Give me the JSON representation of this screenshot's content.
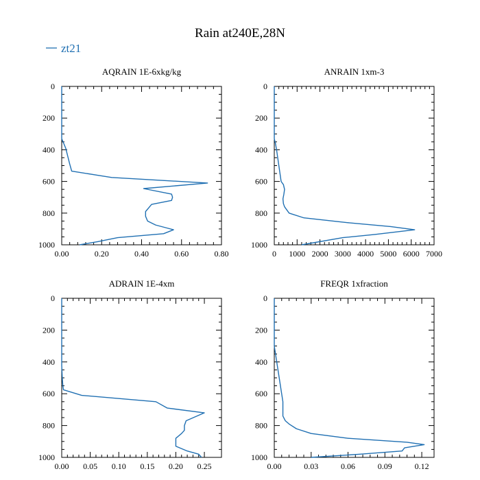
{
  "figure": {
    "title": "Rain at240E,28N",
    "legend": {
      "label": "zt21",
      "color": "#1f6fb2",
      "placement": "top-left"
    }
  },
  "chart_data": [
    {
      "type": "line",
      "title": "AQRAIN  1E-6xkg/kg",
      "xlabel": "",
      "ylabel": "",
      "xlim": [
        0,
        0.8
      ],
      "ylim": [
        1000,
        0
      ],
      "xticks": [
        0,
        0.2,
        0.4,
        0.6,
        0.8
      ],
      "xtick_labels": [
        "0.00",
        "0.20",
        "0.40",
        "0.60",
        "0.80"
      ],
      "yticks": [
        0,
        200,
        400,
        600,
        800,
        1000
      ],
      "ytick_labels": [
        "0",
        "200",
        "400",
        "600",
        "800",
        "1000"
      ],
      "series": [
        {
          "name": "zt21",
          "x": [
            0.0,
            0.0,
            0.01,
            0.02,
            0.03,
            0.04,
            0.05,
            0.25,
            0.73,
            0.41,
            0.55,
            0.555,
            0.55,
            0.45,
            0.44,
            0.42,
            0.42,
            0.43,
            0.47,
            0.53,
            0.56,
            0.51,
            0.28,
            0.18,
            0.09
          ],
          "y": [
            0,
            330,
            360,
            390,
            440,
            490,
            535,
            575,
            610,
            645,
            680,
            700,
            720,
            745,
            760,
            790,
            820,
            850,
            875,
            895,
            905,
            930,
            955,
            980,
            1000
          ]
        }
      ]
    },
    {
      "type": "line",
      "title": "ANRAIN  1xm-3",
      "xlabel": "",
      "ylabel": "",
      "xlim": [
        0,
        7000
      ],
      "ylim": [
        1000,
        0
      ],
      "xticks": [
        0,
        1000,
        2000,
        3000,
        4000,
        5000,
        6000,
        7000
      ],
      "xtick_labels": [
        "0",
        "1000",
        "2000",
        "3000",
        "4000",
        "5000",
        "6000",
        "7000"
      ],
      "yticks": [
        0,
        200,
        400,
        600,
        800,
        1000
      ],
      "ytick_labels": [
        "0",
        "200",
        "400",
        "600",
        "800",
        "1000"
      ],
      "series": [
        {
          "name": "zt21",
          "x": [
            0,
            0,
            50,
            100,
            150,
            200,
            250,
            300,
            400,
            450,
            420,
            380,
            400,
            450,
            650,
            1300,
            3200,
            5100,
            6150,
            4400,
            3000,
            1200
          ],
          "y": [
            0,
            330,
            360,
            400,
            450,
            500,
            550,
            600,
            620,
            650,
            680,
            710,
            740,
            760,
            800,
            830,
            860,
            885,
            905,
            935,
            955,
            1000
          ]
        }
      ]
    },
    {
      "type": "line",
      "title": "ADRAIN  1E-4xm",
      "xlabel": "",
      "ylabel": "",
      "xlim": [
        0,
        0.28
      ],
      "ylim": [
        1000,
        0
      ],
      "xticks": [
        0,
        0.05,
        0.1,
        0.15,
        0.2,
        0.25
      ],
      "xtick_labels": [
        "0.00",
        "0.05",
        "0.10",
        "0.15",
        "0.20",
        "0.25"
      ],
      "yticks": [
        0,
        200,
        400,
        600,
        800,
        1000
      ],
      "ytick_labels": [
        "0",
        "200",
        "400",
        "600",
        "800",
        "1000"
      ],
      "series": [
        {
          "name": "zt21",
          "x": [
            0.0,
            0.0,
            0.001,
            0.002,
            0.003,
            0.035,
            0.165,
            0.185,
            0.25,
            0.218,
            0.215,
            0.215,
            0.21,
            0.2,
            0.2,
            0.22,
            0.24,
            0.245
          ],
          "y": [
            0,
            420,
            500,
            550,
            575,
            610,
            650,
            690,
            720,
            770,
            800,
            830,
            850,
            880,
            930,
            960,
            980,
            1000
          ]
        }
      ]
    },
    {
      "type": "line",
      "title": "FREQR  1xfraction",
      "xlabel": "",
      "ylabel": "",
      "xlim": [
        0,
        0.13
      ],
      "ylim": [
        1000,
        0
      ],
      "xticks": [
        0,
        0.03,
        0.06,
        0.09,
        0.12
      ],
      "xtick_labels": [
        "0.00",
        "0.03",
        "0.06",
        "0.09",
        "0.12"
      ],
      "yticks": [
        0,
        200,
        400,
        600,
        800,
        1000
      ],
      "ytick_labels": [
        "0",
        "200",
        "400",
        "600",
        "800",
        "1000"
      ],
      "series": [
        {
          "name": "zt21",
          "x": [
            0.0,
            0.0,
            0.001,
            0.002,
            0.003,
            0.004,
            0.005,
            0.006,
            0.007,
            0.007,
            0.007,
            0.009,
            0.012,
            0.018,
            0.03,
            0.06,
            0.108,
            0.122,
            0.106,
            0.104,
            0.07,
            0.03
          ],
          "y": [
            0,
            300,
            350,
            400,
            450,
            500,
            550,
            600,
            650,
            700,
            740,
            770,
            790,
            820,
            850,
            880,
            905,
            920,
            940,
            960,
            980,
            1000
          ]
        }
      ]
    }
  ]
}
